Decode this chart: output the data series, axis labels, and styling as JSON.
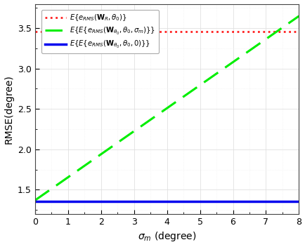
{
  "xlim": [
    0,
    8
  ],
  "ylim": [
    1.2,
    3.8
  ],
  "xlabel": "$\\sigma_{m}$ (degree)",
  "ylabel": "RMSE(degree)",
  "red_line_y": 3.46,
  "blue_line_y": 1.355,
  "green_start_y": 1.37,
  "green_end_y": 3.65,
  "yticks": [
    1.5,
    2.0,
    2.5,
    3.0,
    3.5
  ],
  "xticks": [
    0,
    1,
    2,
    3,
    4,
    5,
    6,
    7,
    8
  ],
  "red_color": "#ff2020",
  "green_color": "#00ee00",
  "blue_color": "#0000ee",
  "legend_label_red": "$E\\{e_{RMS}(\\mathbf{W}_{R}, \\theta_0)\\}$",
  "legend_label_green": "$E\\{E\\{e_{RMS}(\\mathbf{W}_{\\theta_0}, \\theta_0, \\sigma_m)\\}\\}$",
  "legend_label_blue": "$E\\{E\\{e_{RMS}(\\mathbf{W}_{\\theta_0}, \\theta_0, 0)\\}\\}$",
  "background_color": "#ffffff",
  "grid_major_color": "#e0e0e0",
  "grid_minor_color": "#eeeeee"
}
